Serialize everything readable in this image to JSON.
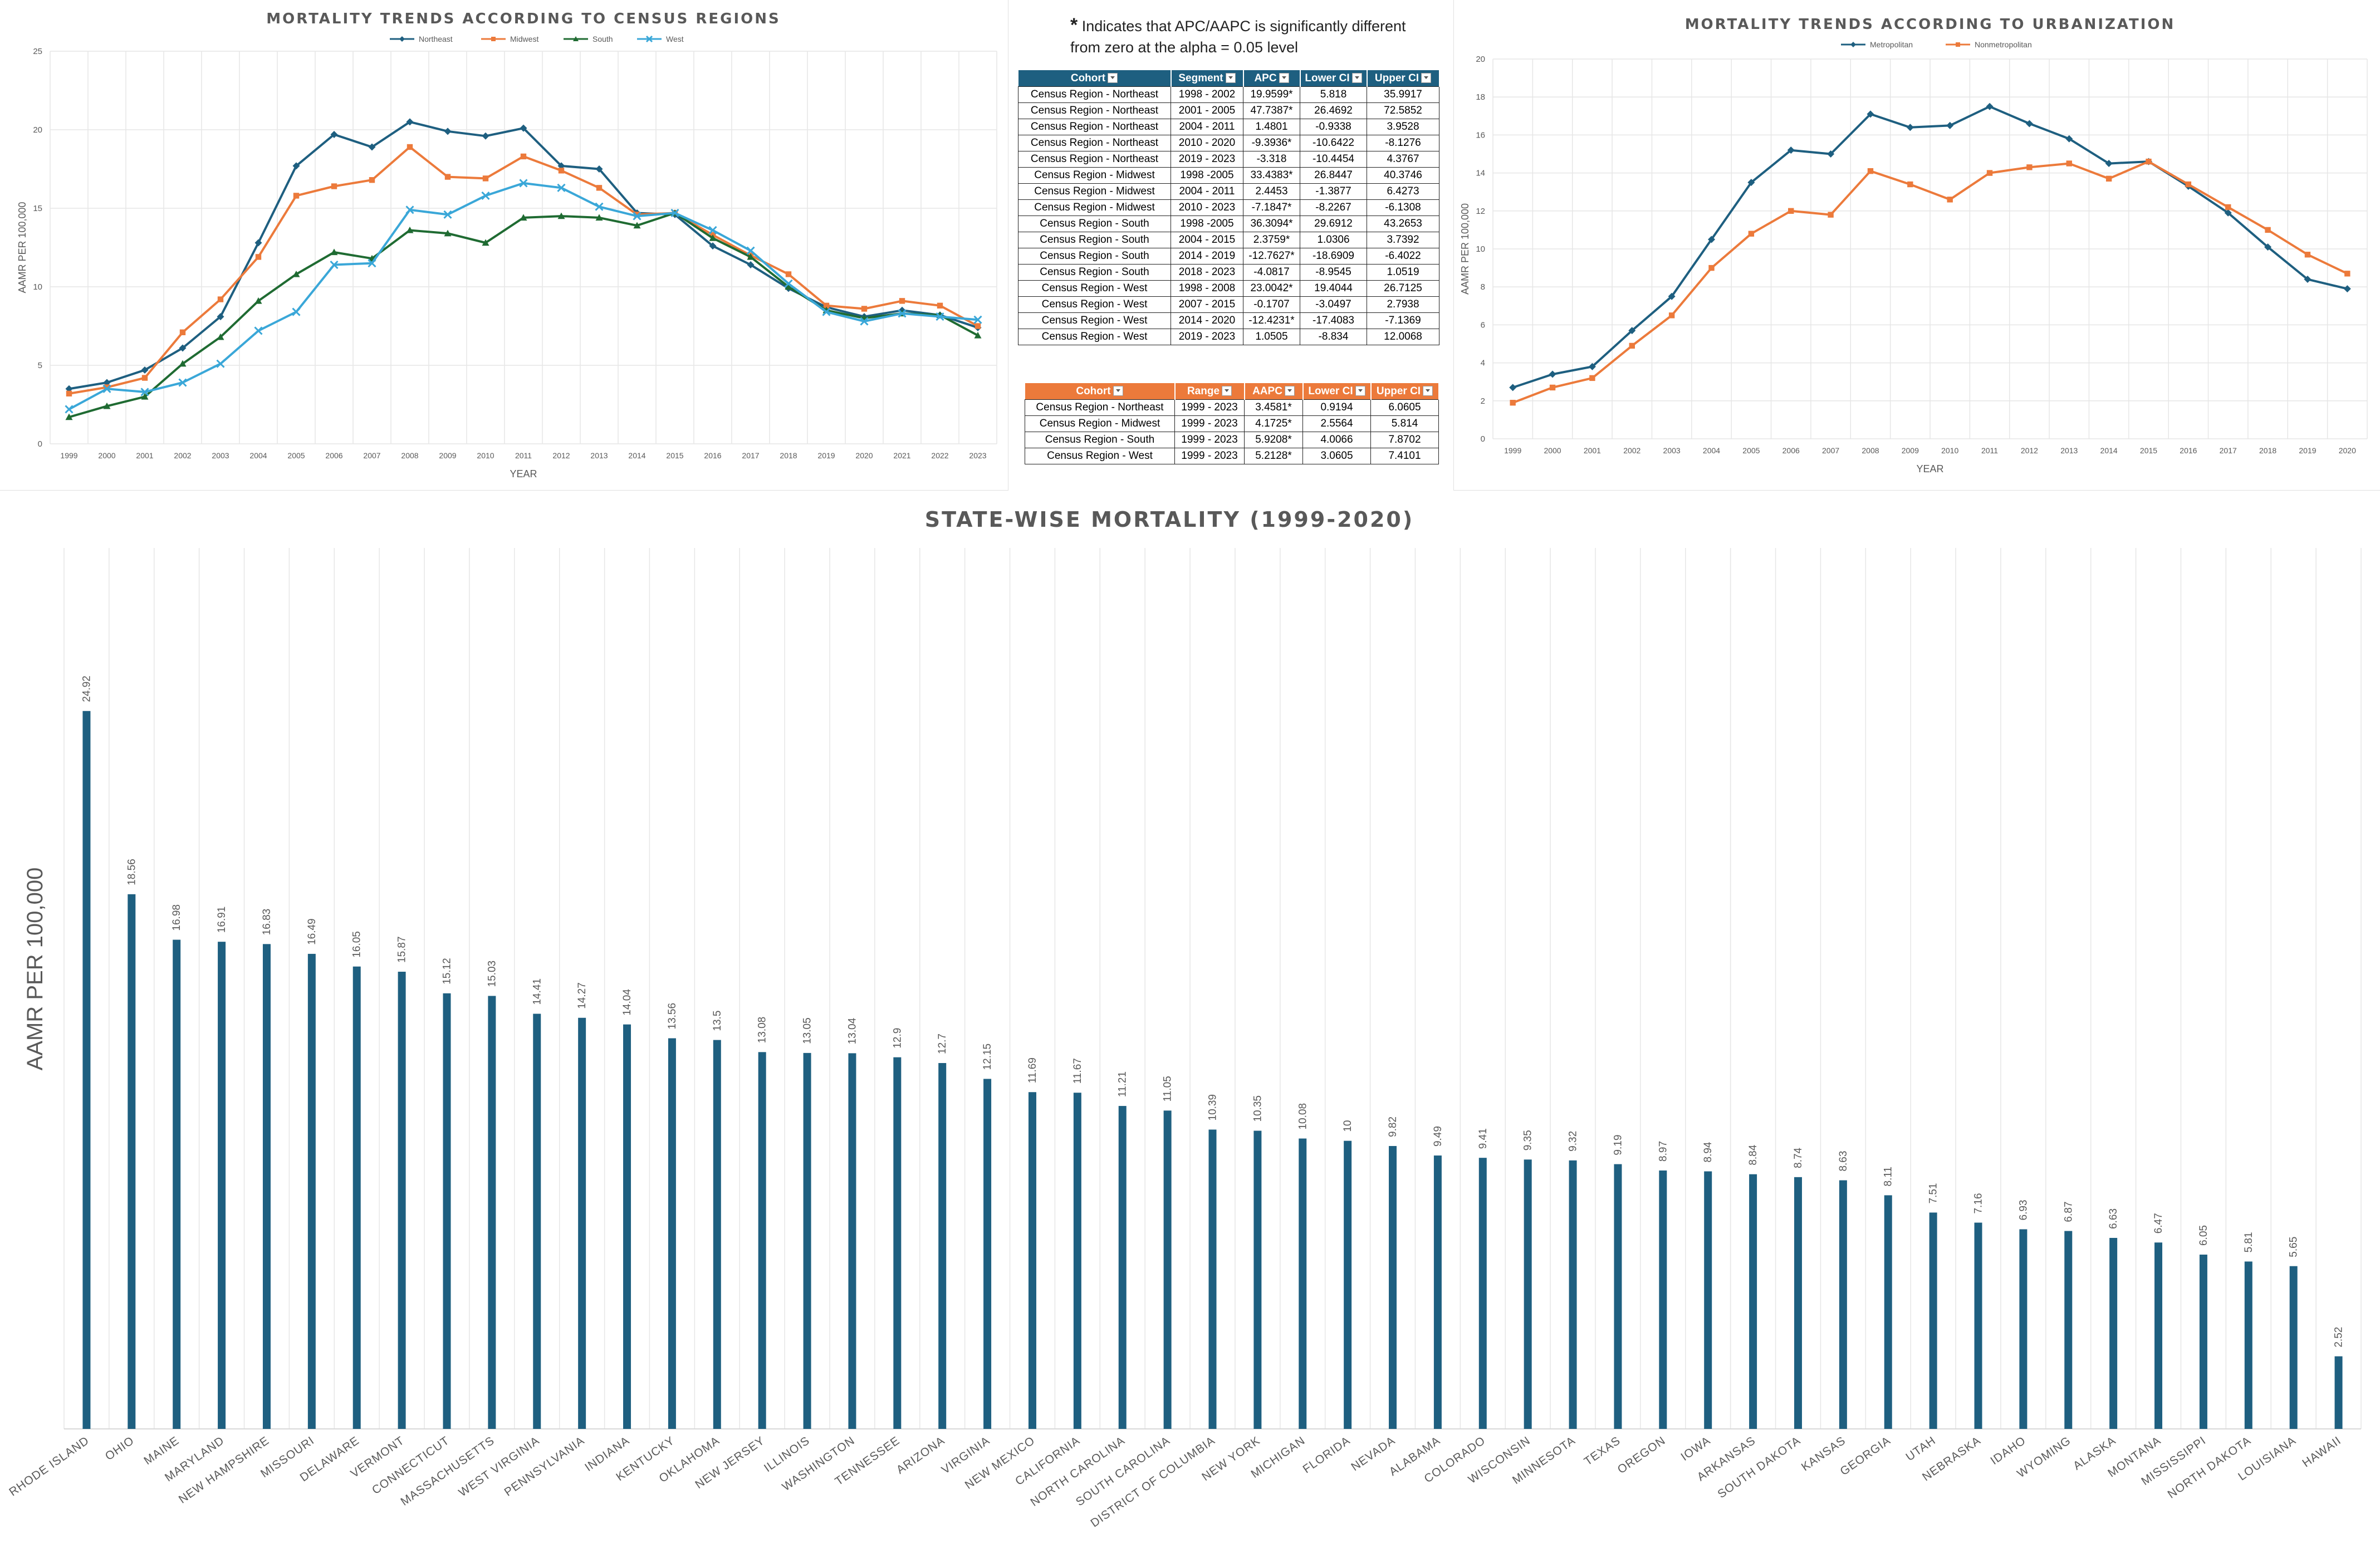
{
  "colors": {
    "northeast": "#1e5f80",
    "midwest": "#ec7a3b",
    "south": "#1f6b32",
    "west": "#3aa7d8",
    "metropolitan": "#1e5f80",
    "nonmetropolitan": "#ec7a3b",
    "state_bar": "#1e5f80",
    "apc_header": "#1e5f80",
    "aapc_header": "#ec7a3b"
  },
  "note": {
    "star": "*",
    "text": "Indicates that APC/AAPC is significantly different from zero at the alpha = 0.05 level"
  },
  "apc_table": {
    "headers": [
      "Cohort",
      "Segment",
      "APC",
      "Lower CI",
      "Upper CI"
    ],
    "rows": [
      [
        "Census Region - Northeast",
        "1998 - 2002",
        "19.9599*",
        "5.818",
        "35.9917"
      ],
      [
        "Census Region - Northeast",
        "2001 - 2005",
        "47.7387*",
        "26.4692",
        "72.5852"
      ],
      [
        "Census Region - Northeast",
        "2004 - 2011",
        "1.4801",
        "-0.9338",
        "3.9528"
      ],
      [
        "Census Region - Northeast",
        "2010 - 2020",
        "-9.3936*",
        "-10.6422",
        "-8.1276"
      ],
      [
        "Census Region - Northeast",
        "2019 - 2023",
        "-3.318",
        "-10.4454",
        "4.3767"
      ],
      [
        "Census Region - Midwest",
        "1998 -2005",
        "33.4383*",
        "26.8447",
        "40.3746"
      ],
      [
        "Census Region - Midwest",
        "2004 - 2011",
        "2.4453",
        "-1.3877",
        "6.4273"
      ],
      [
        "Census Region - Midwest",
        "2010 - 2023",
        "-7.1847*",
        "-8.2267",
        "-6.1308"
      ],
      [
        "Census Region - South",
        "1998 -2005",
        "36.3094*",
        "29.6912",
        "43.2653"
      ],
      [
        "Census Region - South",
        "2004 - 2015",
        "2.3759*",
        "1.0306",
        "3.7392"
      ],
      [
        "Census Region - South",
        "2014 - 2019",
        "-12.7627*",
        "-18.6909",
        "-6.4022"
      ],
      [
        "Census Region - South",
        "2018 - 2023",
        "-4.0817",
        "-8.9545",
        "1.0519"
      ],
      [
        "Census Region - West",
        "1998 - 2008",
        "23.0042*",
        "19.4044",
        "26.7125"
      ],
      [
        "Census Region - West",
        "2007 - 2015",
        "-0.1707",
        "-3.0497",
        "2.7938"
      ],
      [
        "Census Region - West",
        "2014 - 2020",
        "-12.4231*",
        "-17.4083",
        "-7.1369"
      ],
      [
        "Census Region - West",
        "2019 - 2023",
        "1.0505",
        "-8.834",
        "12.0068"
      ]
    ]
  },
  "aapc_table": {
    "headers": [
      "Cohort",
      "Range",
      "AAPC",
      "Lower CI",
      "Upper CI"
    ],
    "rows": [
      [
        "Census Region - Northeast",
        "1999 - 2023",
        "3.4581*",
        "0.9194",
        "6.0605"
      ],
      [
        "Census Region - Midwest",
        "1999 - 2023",
        "4.1725*",
        "2.5564",
        "5.814"
      ],
      [
        "Census Region - South",
        "1999 - 2023",
        "5.9208*",
        "4.0066",
        "7.8702"
      ],
      [
        "Census Region - West",
        "1999 - 2023",
        "5.2128*",
        "3.0605",
        "7.4101"
      ]
    ]
  },
  "chart_data": [
    {
      "type": "line",
      "title": "MORTALITY TRENDS ACCORDING TO CENSUS REGIONS",
      "xlabel": "YEAR",
      "ylabel": "AAMR PER 100,000",
      "ylim": [
        0,
        25
      ],
      "yticks": [
        0,
        5,
        10,
        15,
        20,
        25
      ],
      "grid": true,
      "legend": "top-center",
      "x": [
        "1999",
        "2000",
        "2001",
        "2002",
        "2003",
        "2004",
        "2005",
        "2006",
        "2007",
        "2008",
        "2009",
        "2010",
        "2011",
        "2012",
        "2013",
        "2014",
        "2015",
        "2016",
        "2017",
        "2018",
        "2019",
        "2020",
        "2021",
        "2022",
        "2023"
      ],
      "series": [
        {
          "name": "Northeast",
          "marker": "diamond",
          "values": [
            3.5,
            3.9,
            4.7,
            6.1,
            8.1,
            12.8,
            17.7,
            19.7,
            18.9,
            20.5,
            19.9,
            19.6,
            20.1,
            17.7,
            17.5,
            14.7,
            14.6,
            12.6,
            11.4,
            9.9,
            8.7,
            8.1,
            8.5,
            8.2,
            7.4
          ]
        },
        {
          "name": "Midwest",
          "marker": "square",
          "values": [
            3.2,
            3.6,
            4.2,
            7.1,
            9.2,
            11.9,
            15.8,
            16.4,
            16.8,
            18.9,
            17.0,
            16.9,
            18.3,
            17.4,
            16.3,
            14.6,
            14.7,
            13.3,
            12.0,
            10.8,
            8.8,
            8.6,
            9.1,
            8.8,
            7.5
          ]
        },
        {
          "name": "South",
          "marker": "triangle",
          "values": [
            1.7,
            2.4,
            3.0,
            5.1,
            6.8,
            9.1,
            10.8,
            12.2,
            11.8,
            13.6,
            13.4,
            12.8,
            14.4,
            14.5,
            14.4,
            13.9,
            14.7,
            13.1,
            11.9,
            10.0,
            8.5,
            8.0,
            8.3,
            8.2,
            6.9
          ]
        },
        {
          "name": "West",
          "marker": "x",
          "values": [
            2.2,
            3.5,
            3.3,
            3.9,
            5.1,
            7.2,
            8.4,
            11.4,
            11.5,
            14.9,
            14.6,
            15.8,
            16.6,
            16.3,
            15.1,
            14.5,
            14.7,
            13.6,
            12.3,
            10.2,
            8.4,
            7.8,
            8.3,
            8.1,
            7.9
          ]
        }
      ]
    },
    {
      "type": "line",
      "title": "MORTALITY TRENDS ACCORDING TO URBANIZATION",
      "xlabel": "YEAR",
      "ylabel": "AAMR PER 100,000",
      "ylim": [
        0,
        20
      ],
      "yticks": [
        0,
        2,
        4,
        6,
        8,
        10,
        12,
        14,
        16,
        18,
        20
      ],
      "grid": true,
      "legend": "top-left",
      "x": [
        "1999",
        "2000",
        "2001",
        "2002",
        "2003",
        "2004",
        "2005",
        "2006",
        "2007",
        "2008",
        "2009",
        "2010",
        "2011",
        "2012",
        "2013",
        "2014",
        "2015",
        "2016",
        "2017",
        "2018",
        "2019",
        "2020"
      ],
      "series": [
        {
          "name": "Metropolitan",
          "marker": "diamond",
          "values": [
            2.7,
            3.4,
            3.8,
            5.7,
            7.5,
            10.5,
            13.5,
            15.2,
            15.0,
            17.1,
            16.4,
            16.5,
            17.5,
            16.6,
            15.8,
            14.5,
            14.6,
            13.3,
            11.9,
            10.1,
            8.4,
            7.9
          ]
        },
        {
          "name": "Nonmetropolitan",
          "marker": "square",
          "values": [
            1.9,
            2.7,
            3.2,
            4.9,
            6.5,
            9.0,
            10.8,
            12.0,
            11.8,
            14.1,
            13.4,
            12.6,
            14.0,
            14.3,
            14.5,
            13.7,
            14.6,
            13.4,
            12.2,
            11.0,
            9.7,
            8.7
          ]
        }
      ]
    },
    {
      "type": "bar",
      "title": "STATE-WISE MORTALITY (1999-2020)",
      "xlabel": "",
      "ylabel": "AAMR PER 100,000",
      "ylim": [
        0,
        30
      ],
      "grid": true,
      "categories": [
        "RHODE ISLAND",
        "OHIO",
        "MAINE",
        "MARYLAND",
        "NEW HAMPSHIRE",
        "MISSOURI",
        "DELAWARE",
        "VERMONT",
        "CONNECTICUT",
        "MASSACHUSETTS",
        "WEST VIRGINIA",
        "PENNSYLVANIA",
        "INDIANA",
        "KENTUCKY",
        "OKLAHOMA",
        "NEW JERSEY",
        "ILLINOIS",
        "WASHINGTON",
        "TENNESSEE",
        "ARIZONA",
        "VIRGINIA",
        "NEW MEXICO",
        "CALIFORNIA",
        "NORTH CAROLINA",
        "SOUTH CAROLINA",
        "DISTRICT OF COLUMBIA",
        "NEW YORK",
        "MICHIGAN",
        "FLORIDA",
        "NEVADA",
        "ALABAMA",
        "COLORADO",
        "WISCONSIN",
        "MINNESOTA",
        "TEXAS",
        "OREGON",
        "IOWA",
        "ARKANSAS",
        "SOUTH DAKOTA",
        "KANSAS",
        "GEORGIA",
        "UTAH",
        "NEBRASKA",
        "IDAHO",
        "WYOMING",
        "ALASKA",
        "MONTANA",
        "MISSISSIPPI",
        "NORTH DAKOTA",
        "LOUISIANA",
        "HAWAII"
      ],
      "values": [
        24.92,
        18.56,
        16.98,
        16.91,
        16.83,
        16.49,
        16.05,
        15.87,
        15.12,
        15.03,
        14.41,
        14.27,
        14.04,
        13.56,
        13.5,
        13.08,
        13.05,
        13.04,
        12.9,
        12.7,
        12.15,
        11.69,
        11.67,
        11.21,
        11.05,
        10.39,
        10.35,
        10.08,
        10,
        9.82,
        9.49,
        9.41,
        9.35,
        9.32,
        9.19,
        8.97,
        8.94,
        8.84,
        8.74,
        8.63,
        8.11,
        7.51,
        7.16,
        6.93,
        6.87,
        6.63,
        6.47,
        6.05,
        5.81,
        5.65,
        2.52
      ],
      "labels": [
        "24.92",
        "18.56",
        "16.98",
        "16.91",
        "16.83",
        "16.49",
        "16.05",
        "15.87",
        "15.12",
        "15.03",
        "14.41",
        "14.27",
        "14.04",
        "13.56",
        "13.5",
        "13.08",
        "13.05",
        "13.04",
        "12.9",
        "12.7",
        "12.15",
        "11.69",
        "11.67",
        "11.21",
        "11.05",
        "10.39",
        "10.35",
        "10.08",
        "10",
        "9.82",
        "9.49",
        "9.41",
        "9.35",
        "9.32",
        "9.19",
        "8.97",
        "8.94",
        "8.84",
        "8.74",
        "8.63",
        "8.11",
        "7.51",
        "7.16",
        "6.93",
        "6.87",
        "6.63",
        "6.47",
        "6.05",
        "5.81",
        "5.65",
        "2.52"
      ]
    }
  ]
}
